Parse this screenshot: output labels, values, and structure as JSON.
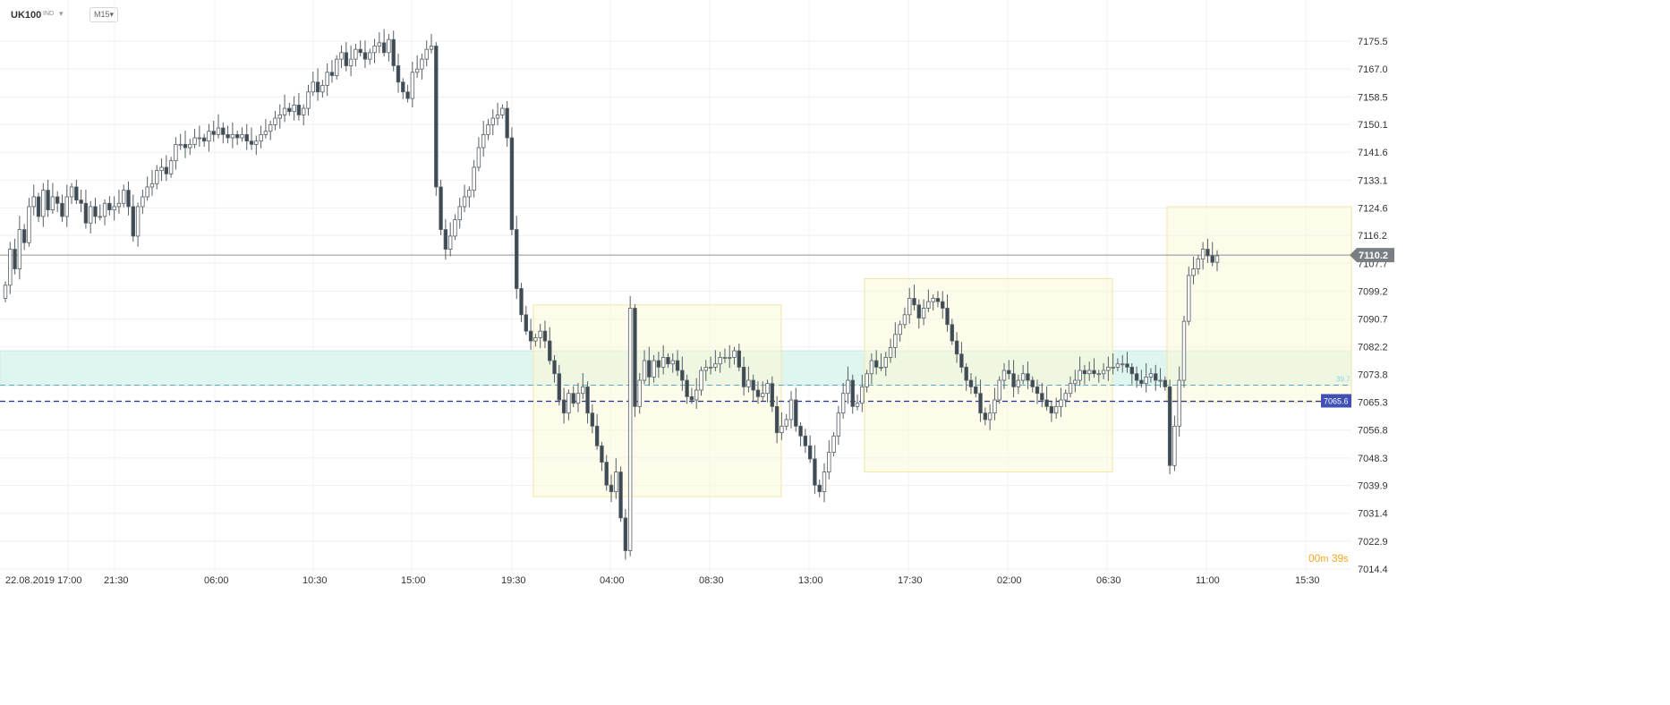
{
  "header": {
    "symbol": "UK100",
    "exchange": "IND",
    "timeframe": "M15"
  },
  "price_tags": {
    "current": "7110.2",
    "support": "7065.6",
    "aux": "39.7"
  },
  "countdown": {
    "minutes": "00",
    "m_unit": "m",
    "seconds": "39",
    "s_unit": "s"
  },
  "colors": {
    "down_candle": "#3d4a54",
    "up_candle": "#ffffff",
    "wick": "#555f66",
    "zone_green": "#d8f3ec",
    "zone_yellow": "#fbf7d8",
    "support_line": "#283593",
    "current_tag": "#7a7f84",
    "support_tag": "#3f51b5"
  },
  "chart_data": {
    "type": "candlestick",
    "instrument": "UK100",
    "timeframe": "M15",
    "ylim": [
      7014.4,
      7179.5
    ],
    "y_ticks": [
      "7175.5",
      "7167.0",
      "7158.5",
      "7150.1",
      "7141.6",
      "7133.1",
      "7124.6",
      "7116.2",
      "7107.7",
      "7099.2",
      "7090.7",
      "7082.2",
      "7073.8",
      "7065.3",
      "7056.8",
      "7048.3",
      "7039.9",
      "7031.4",
      "7022.9",
      "7014.4"
    ],
    "x_ticks": [
      "22.08.2019",
      "17:00",
      "21:30",
      "06:00",
      "10:30",
      "15:00",
      "19:30",
      "04:00",
      "08:30",
      "13:00",
      "17:30",
      "02:00",
      "06:30",
      "11:00",
      "15:30"
    ],
    "current_price": 7110.2,
    "horizontal_lines": [
      {
        "label": "7065.6",
        "value": 7065.6,
        "style": "dashed"
      },
      {
        "label": "39.7",
        "value": 7070.5,
        "style": "dashed-light"
      }
    ],
    "zones": [
      {
        "kind": "green-band",
        "from": 7070.5,
        "to": 7081.0
      },
      {
        "kind": "yellow-box",
        "x_from": "19:30+",
        "x_to": "11:00-",
        "from": 7036.5,
        "to": 7095.0
      },
      {
        "kind": "yellow-box",
        "x_from": "13:00+",
        "x_to": "06:30+",
        "from": 7044.0,
        "to": 7103.0
      },
      {
        "kind": "yellow-box",
        "x_from": "08:30 day3",
        "x_to": "right",
        "from": 7065.3,
        "to": 7125.0
      }
    ],
    "closes": [
      7101,
      7112,
      7106,
      7118,
      7114,
      7125,
      7128,
      7122,
      7130,
      7124,
      7128,
      7126,
      7122,
      7128,
      7131,
      7127,
      7126,
      7120,
      7125,
      7122,
      7122,
      7126,
      7124,
      7125,
      7126,
      7130,
      7125,
      7116,
      7125,
      7128,
      7131,
      7132,
      7136,
      7137,
      7135,
      7139,
      7144,
      7144,
      7143,
      7144,
      7146,
      7146,
      7145,
      7148,
      7147,
      7149,
      7147,
      7146,
      7147,
      7146,
      7147,
      7145,
      7144,
      7145,
      7147,
      7148,
      7150,
      7152,
      7153,
      7155,
      7154,
      7156,
      7153,
      7155,
      7160,
      7163,
      7160,
      7162,
      7166,
      7165,
      7170,
      7172,
      7168,
      7170,
      7173,
      7172,
      7170,
      7172,
      7174,
      7175,
      7172,
      7176,
      7168,
      7163,
      7160,
      7158,
      7166,
      7167,
      7170,
      7173,
      7174,
      7131,
      7118,
      7112,
      7116,
      7121,
      7125,
      7128,
      7130,
      7137,
      7143,
      7147,
      7150,
      7152,
      7153,
      7155,
      7146,
      7118,
      7100,
      7092,
      7087,
      7084,
      7085,
      7087,
      7084,
      7078,
      7074,
      7066,
      7062,
      7068,
      7065,
      7068,
      7070,
      7062,
      7058,
      7052,
      7047,
      7040,
      7038,
      7044,
      7030,
      7020,
      7094,
      7064,
      7072,
      7078,
      7073,
      7078,
      7076,
      7079,
      7077,
      7078,
      7075,
      7072,
      7067,
      7066,
      7069,
      7075,
      7076,
      7076,
      7077,
      7079,
      7079,
      7079,
      7081,
      7076,
      7070,
      7072,
      7069,
      7067,
      7068,
      7071,
      7064,
      7056,
      7058,
      7060,
      7066,
      7058,
      7055,
      7052,
      7048,
      7040,
      7038,
      7044,
      7050,
      7055,
      7062,
      7068,
      7072,
      7064,
      7065,
      7070,
      7074,
      7078,
      7076,
      7076,
      7079,
      7082,
      7086,
      7089,
      7092,
      7097,
      7095,
      7091,
      7094,
      7096,
      7097,
      7096,
      7094,
      7089,
      7084,
      7080,
      7076,
      7072,
      7070,
      7068,
      7062,
      7060,
      7062,
      7066,
      7072,
      7075,
      7074,
      7070,
      7072,
      7074,
      7072,
      7070,
      7068,
      7066,
      7064,
      7062,
      7064,
      7066,
      7068,
      7071,
      7072,
      7075,
      7074,
      7075,
      7074,
      7074,
      7075,
      7076,
      7076,
      7077,
      7077,
      7076,
      7074,
      7072,
      7071,
      7073,
      7074,
      7072,
      7072,
      7070,
      7046,
      7058,
      7072,
      7090,
      7104,
      7106,
      7109,
      7112,
      7110,
      7108,
      7110
    ]
  }
}
